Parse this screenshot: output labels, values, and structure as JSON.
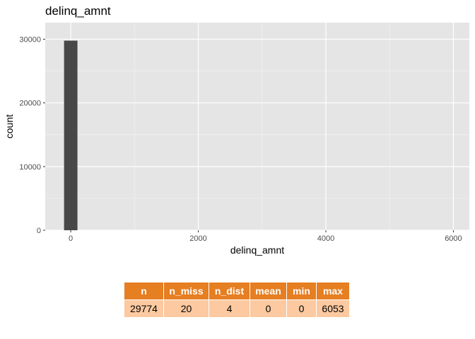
{
  "chart_data": {
    "type": "histogram",
    "title": "delinq_amnt",
    "xlabel": "delinq_amnt",
    "ylabel": "count",
    "xlim": [
      -400,
      6250
    ],
    "ylim": [
      0,
      30000
    ],
    "x_ticks": [
      0,
      2000,
      4000,
      6000
    ],
    "y_ticks": [
      0,
      10000,
      20000,
      30000
    ],
    "bins": [
      {
        "x_start": -105,
        "x_end": 105,
        "count": 29774
      }
    ],
    "colors": {
      "panel": "#e5e5e5",
      "grid": "#ffffff",
      "bar": "#474747"
    }
  },
  "stats_table": {
    "headers": [
      "n",
      "n_miss",
      "n_dist",
      "mean",
      "min",
      "max"
    ],
    "values": [
      "29774",
      "20",
      "4",
      "0",
      "0",
      "6053"
    ],
    "colors": {
      "header_bg": "#e67e22",
      "cell_bg": "#fcc9a0"
    }
  }
}
